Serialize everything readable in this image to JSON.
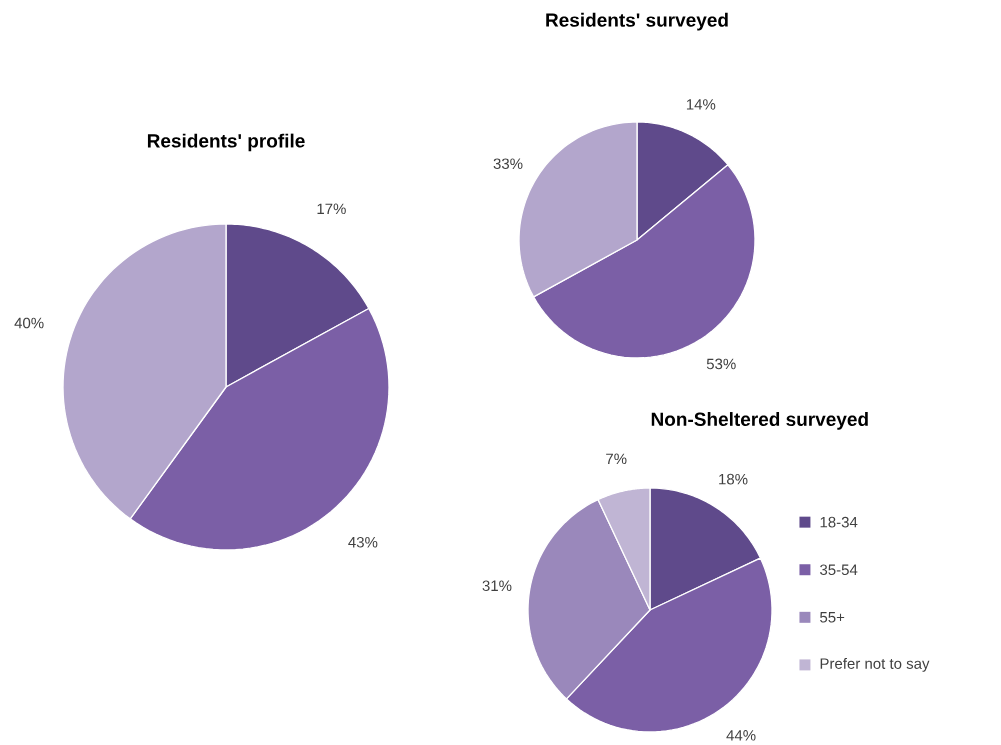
{
  "chart_data": [
    {
      "type": "pie",
      "title": "Residents' profile",
      "categories": [
        null,
        null,
        null
      ],
      "values": [
        17,
        43,
        40
      ],
      "colors": [
        "#5f4a8b",
        "#7b5fa6",
        "#b3a6cc"
      ],
      "value_labels": [
        "17%",
        "43%",
        "40%"
      ]
    },
    {
      "type": "pie",
      "title": "Residents' surveyed",
      "categories": [
        null,
        null,
        null
      ],
      "values": [
        14,
        53,
        33
      ],
      "colors": [
        "#5f4a8b",
        "#7b5fa6",
        "#b3a6cc"
      ],
      "value_labels": [
        "14%",
        "53%",
        "33%"
      ]
    },
    {
      "type": "pie",
      "title": "Non-Sheltered surveyed",
      "categories": [
        "18-34",
        "35-54",
        "55+",
        "Prefer not to say"
      ],
      "values": [
        18,
        44,
        31,
        7
      ],
      "colors": [
        "#5f4a8b",
        "#7b5fa6",
        "#9a88bb",
        "#c0b5d4"
      ],
      "value_labels": [
        "18%",
        "44%",
        "31%",
        "7%"
      ],
      "legend": "right"
    }
  ]
}
